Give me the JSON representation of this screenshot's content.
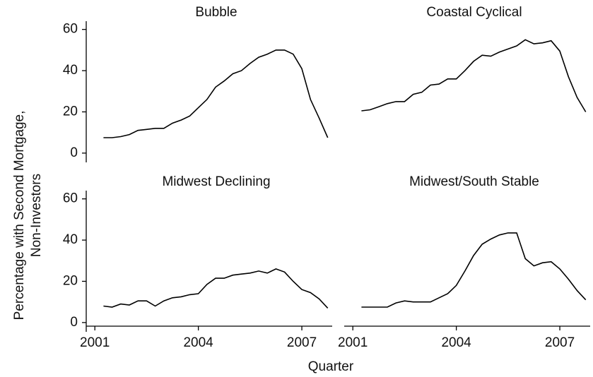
{
  "ylabel": [
    "Percentage with Second Mortgage,",
    "Non-Investors"
  ],
  "xlabel": "Quarter",
  "chart_data": [
    {
      "type": "line",
      "title": "Bubble",
      "color": "#000000",
      "x": [
        2001.25,
        2001.5,
        2001.75,
        2002,
        2002.25,
        2002.5,
        2002.75,
        2003,
        2003.25,
        2003.5,
        2003.75,
        2004,
        2004.25,
        2004.5,
        2004.75,
        2005,
        2005.25,
        2005.5,
        2005.75,
        2006,
        2006.25,
        2006.5,
        2006.75,
        2007,
        2007.25,
        2007.5,
        2007.75
      ],
      "values": [
        7.5,
        7.5,
        8,
        9,
        11,
        11.5,
        12,
        12,
        14.5,
        16,
        18,
        22,
        26,
        32,
        35,
        38.5,
        40,
        43.5,
        46.5,
        48,
        50,
        50,
        48,
        41,
        26,
        17,
        7.5
      ],
      "xlim": [
        2000.75,
        2007.88
      ],
      "ylim": [
        -4.5,
        64
      ],
      "yticks": [
        0,
        20,
        40,
        60
      ]
    },
    {
      "type": "line",
      "title": "Coastal Cyclical",
      "color": "#000000",
      "x": [
        2001.25,
        2001.5,
        2001.75,
        2002,
        2002.25,
        2002.5,
        2002.75,
        2003,
        2003.25,
        2003.5,
        2003.75,
        2004,
        2004.25,
        2004.5,
        2004.75,
        2005,
        2005.25,
        2005.5,
        2005.75,
        2006,
        2006.25,
        2006.5,
        2006.75,
        2007,
        2007.25,
        2007.5,
        2007.75
      ],
      "values": [
        20.5,
        21,
        22.5,
        24,
        25,
        25,
        28.5,
        29.5,
        33,
        33.5,
        36,
        36,
        40,
        44.5,
        47.5,
        47,
        49,
        50.5,
        52,
        55,
        53,
        53.5,
        54.5,
        49.5,
        37,
        27,
        20
      ],
      "xlim": [
        2000.75,
        2007.88
      ],
      "ylim": [
        -4.5,
        64
      ]
    },
    {
      "type": "line",
      "title": "Midwest Declining",
      "color": "#000000",
      "x": [
        2001.25,
        2001.5,
        2001.75,
        2002,
        2002.25,
        2002.5,
        2002.75,
        2003,
        2003.25,
        2003.5,
        2003.75,
        2004,
        2004.25,
        2004.5,
        2004.75,
        2005,
        2005.25,
        2005.5,
        2005.75,
        2006,
        2006.25,
        2006.5,
        2006.75,
        2007,
        2007.25,
        2007.5,
        2007.75
      ],
      "values": [
        8,
        7.5,
        9,
        8.5,
        10.5,
        10.5,
        8,
        10.5,
        12,
        12.5,
        13.5,
        14,
        18.5,
        21.5,
        21.5,
        23,
        23.5,
        24,
        25,
        24,
        26,
        24.5,
        20,
        16,
        14.5,
        11.5,
        7
      ],
      "xlim": [
        2000.75,
        2007.88
      ],
      "ylim": [
        -4.5,
        64
      ],
      "yticks": [
        0,
        20,
        40,
        60
      ],
      "xticks": [
        2001,
        2004,
        2007
      ]
    },
    {
      "type": "line",
      "title": "Midwest/South Stable",
      "color": "#000000",
      "x": [
        2001.25,
        2001.5,
        2001.75,
        2002,
        2002.25,
        2002.5,
        2002.75,
        2003,
        2003.25,
        2003.5,
        2003.75,
        2004,
        2004.25,
        2004.5,
        2004.75,
        2005,
        2005.25,
        2005.5,
        2005.75,
        2006,
        2006.25,
        2006.5,
        2006.75,
        2007,
        2007.25,
        2007.5,
        2007.75
      ],
      "values": [
        7.5,
        7.5,
        7.5,
        7.5,
        9.5,
        10.5,
        10,
        10,
        10,
        12,
        14,
        18,
        25,
        32.5,
        38,
        40.5,
        42.5,
        43.5,
        43.5,
        31,
        27.5,
        29,
        29.5,
        26,
        21,
        15.5,
        11
      ],
      "xlim": [
        2000.75,
        2007.88
      ],
      "ylim": [
        -4.5,
        64
      ],
      "xticks": [
        2001,
        2004,
        2007
      ]
    }
  ]
}
